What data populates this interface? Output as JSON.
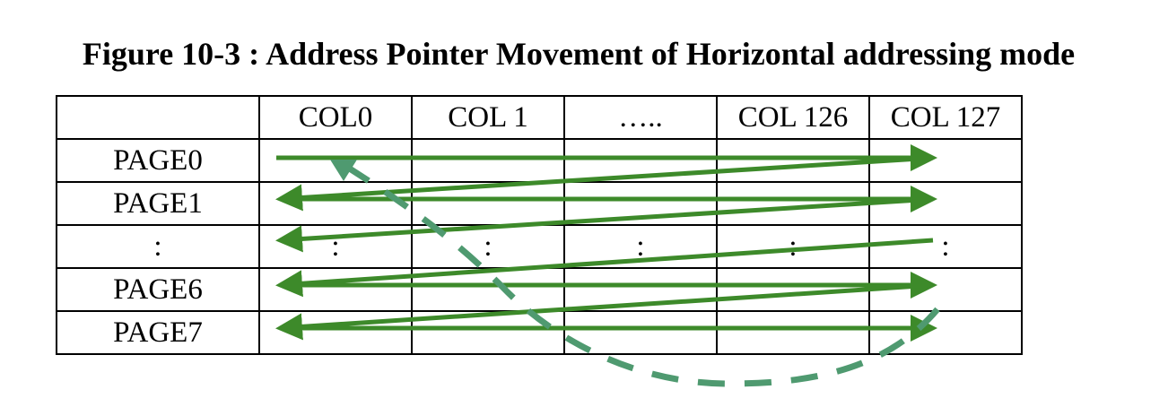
{
  "figure": {
    "title": "Figure 10-3 : Address Pointer Movement of Horizontal addressing mode"
  },
  "table": {
    "columns": [
      "",
      "COL0",
      "COL 1",
      "…..",
      "COL 126",
      "COL 127"
    ],
    "rows": [
      {
        "label": "PAGE0",
        "cells": [
          "",
          "",
          "",
          "",
          ""
        ]
      },
      {
        "label": "PAGE1",
        "cells": [
          "",
          "",
          "",
          "",
          ""
        ]
      },
      {
        "label": ":",
        "cells": [
          ":",
          ":",
          ":",
          ":",
          ":"
        ]
      },
      {
        "label": "PAGE6",
        "cells": [
          "",
          "",
          "",
          "",
          ""
        ]
      },
      {
        "label": "PAGE7",
        "cells": [
          "",
          "",
          "",
          "",
          ""
        ]
      }
    ]
  },
  "colors": {
    "arrow": "#3d8a2a",
    "return_path": "#4f9a70",
    "grid": "#000000"
  }
}
